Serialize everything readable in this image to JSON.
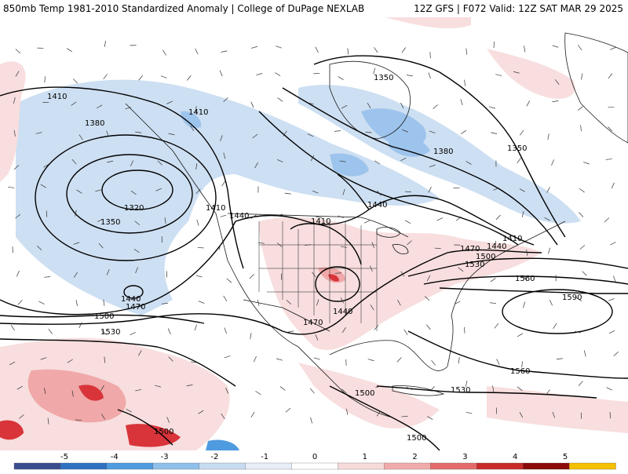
{
  "header": {
    "left_title": "850mb Temp 1981-2010 Standardized Anomaly | College of DuPage NEXLAB",
    "right_title": "12Z GFS | F072 Valid: 12Z SAT MAR 29 2025"
  },
  "contour_labels": [
    {
      "id": "lbl-1410-nw",
      "text": "1410"
    },
    {
      "id": "lbl-1410-bc",
      "text": "1410"
    },
    {
      "id": "lbl-1380-w",
      "text": "1380"
    },
    {
      "id": "lbl-1320",
      "text": "1320"
    },
    {
      "id": "lbl-1350-w",
      "text": "1350"
    },
    {
      "id": "lbl-1410-coast",
      "text": "1410"
    },
    {
      "id": "lbl-1440-coast",
      "text": "1440"
    },
    {
      "id": "lbl-1410-rockies",
      "text": "1410"
    },
    {
      "id": "lbl-1440-pac",
      "text": "1440"
    },
    {
      "id": "lbl-1470-pac",
      "text": "1470"
    },
    {
      "id": "lbl-1500-pac",
      "text": "1500"
    },
    {
      "id": "lbl-1530-pac",
      "text": "1530"
    },
    {
      "id": "lbl-1350-hudson",
      "text": "1350"
    },
    {
      "id": "lbl-1380-canada",
      "text": "1380"
    },
    {
      "id": "lbl-1350-east",
      "text": "1350"
    },
    {
      "id": "lbl-1440-lakes",
      "text": "1440"
    },
    {
      "id": "lbl-1410-east",
      "text": "1410"
    },
    {
      "id": "lbl-1440-east",
      "text": "1440"
    },
    {
      "id": "lbl-1470-east",
      "text": "1470"
    },
    {
      "id": "lbl-1500-east",
      "text": "1500"
    },
    {
      "id": "lbl-1530-east",
      "text": "1530"
    },
    {
      "id": "lbl-1560-atl",
      "text": "1560"
    },
    {
      "id": "lbl-1590-atl",
      "text": "1590"
    },
    {
      "id": "lbl-1470-tx",
      "text": "1470"
    },
    {
      "id": "lbl-1440-plains",
      "text": "1440"
    },
    {
      "id": "lbl-1560-sub",
      "text": "1560"
    },
    {
      "id": "lbl-1530-carib",
      "text": "1530"
    },
    {
      "id": "lbl-1500-mex",
      "text": "1500"
    },
    {
      "id": "lbl-1500-sw",
      "text": "1500"
    },
    {
      "id": "lbl-1500-cam",
      "text": "1500"
    }
  ],
  "colorbar": {
    "ticks": [
      "-5",
      "-4",
      "-3",
      "-2",
      "-1",
      "0",
      "1",
      "2",
      "3",
      "4",
      "5"
    ],
    "colors": [
      "#3a4d8f",
      "#2f70c1",
      "#4f9be0",
      "#8fc0ea",
      "#c7dcf2",
      "#e8eef8",
      "#ffffff",
      "#f8dada",
      "#f1aaaa",
      "#e46a6a",
      "#c92a2a",
      "#8c0a0a",
      "#f5c000"
    ]
  },
  "colors": {
    "cold_light": "#cddff2",
    "cold_mid": "#9dc4ec",
    "warm_light": "#f8dede",
    "warm_mid": "#f0a8a8",
    "warm_strong": "#d8343a",
    "contour": "#000000",
    "geography": "#1a1a1a"
  }
}
